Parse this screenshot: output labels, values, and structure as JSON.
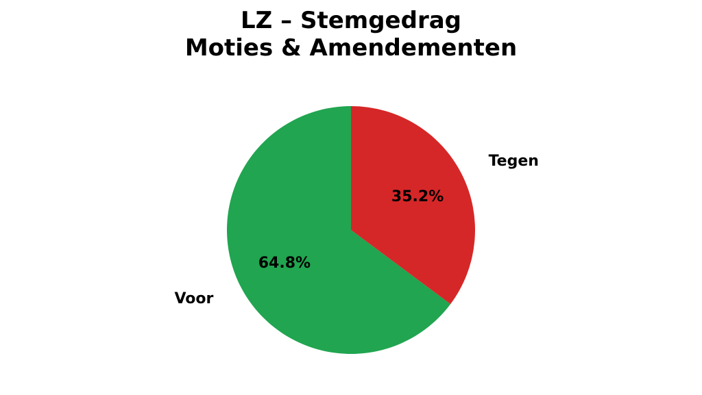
{
  "chart_data": {
    "type": "pie",
    "title": [
      "LZ – Stemgedrag",
      "Moties & Amendementen"
    ],
    "slices": [
      {
        "label": "Tegen",
        "value": 35.2,
        "pct_label": "35.2%",
        "color": "#d62728"
      },
      {
        "label": "Voor",
        "value": 64.8,
        "pct_label": "64.8%",
        "color": "#21a550"
      }
    ],
    "start": "top",
    "direction": "clockwise"
  }
}
